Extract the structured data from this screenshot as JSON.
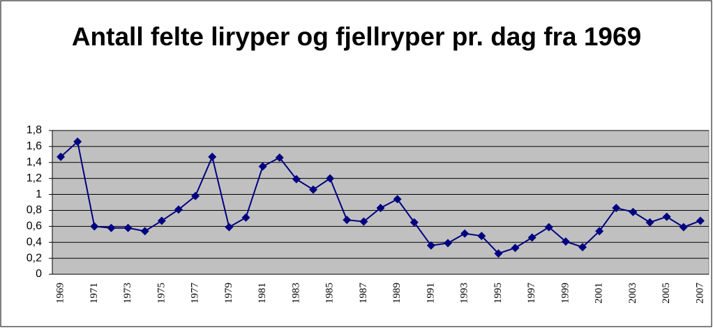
{
  "chart_data": {
    "type": "line",
    "title": "Antall felte liryper og fjellryper pr. dag fra 1969",
    "categories": [
      "1969",
      null,
      "1971",
      null,
      "1973",
      null,
      "1975",
      null,
      "1977",
      null,
      "1979",
      null,
      "1981",
      null,
      "1983",
      null,
      "1985",
      null,
      "1987",
      null,
      "1989",
      null,
      "1991",
      null,
      "1993",
      null,
      "1995",
      null,
      "1997",
      null,
      "1999",
      null,
      "2001",
      null,
      "2003",
      null,
      "2005",
      null,
      "2007"
    ],
    "values": [
      1.47,
      1.66,
      0.6,
      0.58,
      0.58,
      0.54,
      0.67,
      0.81,
      0.98,
      1.47,
      0.59,
      0.71,
      1.35,
      1.46,
      1.19,
      1.06,
      1.2,
      0.68,
      0.66,
      0.83,
      0.94,
      0.65,
      0.36,
      0.39,
      0.51,
      0.48,
      0.26,
      0.33,
      0.46,
      0.59,
      0.41,
      0.34,
      0.54,
      0.83,
      0.78,
      0.65,
      0.72,
      0.59,
      0.67
    ],
    "color": "#000080",
    "ylim": [
      0,
      1.8
    ],
    "yticks": [
      0,
      {
        "value": 0.2,
        "label": "0,2"
      },
      {
        "value": 0.4,
        "label": "0,4"
      },
      {
        "value": 0.6,
        "label": "0,6"
      },
      {
        "value": 0.8,
        "label": "0,8"
      },
      1,
      {
        "value": 1.2,
        "label": "1,2"
      },
      {
        "value": 1.4,
        "label": "1,4"
      },
      {
        "value": 1.6,
        "label": "1,6"
      },
      {
        "value": 1.8,
        "label": "1,8"
      }
    ],
    "grid": true,
    "plot_background": "#c0c0c0"
  }
}
